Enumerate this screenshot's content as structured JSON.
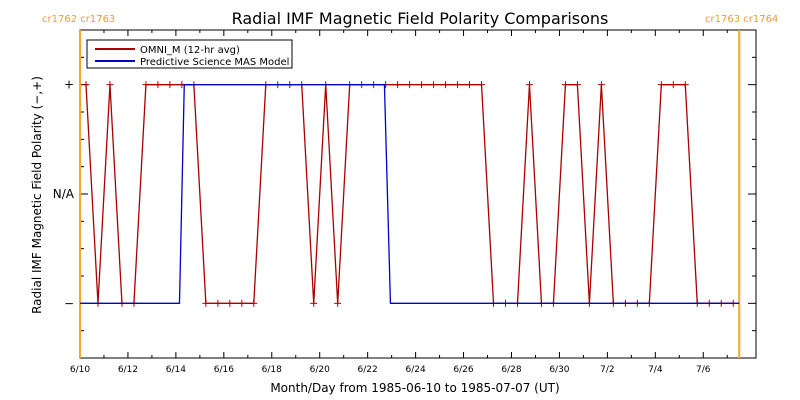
{
  "chart_data": {
    "type": "line",
    "title": "Radial IMF Magnetic Field Polarity Comparisons",
    "xlabel": "Month/Day from 1985-06-10 to 1985-07-07 (UT)",
    "ylabel": "Radial IMF Magnetic Field Polarity (−,+)",
    "x_start_date": "1985-06-10",
    "xlim_days": [
      0,
      28.2
    ],
    "ylim": [
      -1.5,
      1.5
    ],
    "x_ticks": [
      {
        "day": 0,
        "label": "6/10"
      },
      {
        "day": 2,
        "label": "6/12"
      },
      {
        "day": 4,
        "label": "6/14"
      },
      {
        "day": 6,
        "label": "6/16"
      },
      {
        "day": 8,
        "label": "6/18"
      },
      {
        "day": 10,
        "label": "6/20"
      },
      {
        "day": 12,
        "label": "6/22"
      },
      {
        "day": 14,
        "label": "6/24"
      },
      {
        "day": 16,
        "label": "6/26"
      },
      {
        "day": 18,
        "label": "6/28"
      },
      {
        "day": 20,
        "label": "6/30"
      },
      {
        "day": 22,
        "label": "7/2"
      },
      {
        "day": 24,
        "label": "7/4"
      },
      {
        "day": 26,
        "label": "7/6"
      }
    ],
    "y_ticks": [
      {
        "value": 1,
        "label": "+"
      },
      {
        "value": 0,
        "label": "N/A"
      },
      {
        "value": -1,
        "label": "−"
      }
    ],
    "carrington_markers": [
      {
        "day": 0,
        "label": "cr1762 cr1763",
        "color": "#f5a623",
        "side": "left"
      },
      {
        "day": 27.5,
        "label": "cr1763 cr1764",
        "color": "#f5a623",
        "side": "right"
      }
    ],
    "legend": {
      "placement": "top-left",
      "entries": [
        {
          "name": "OMNI_M (12-hr avg)",
          "color": "#aa0000"
        },
        {
          "name": "Predictive Science MAS Model",
          "color": "#0000cc"
        }
      ]
    },
    "series": [
      {
        "name": "OMNI_M (12-hr avg)",
        "color": "#aa0000",
        "marker": "plus",
        "x": [
          0.25,
          0.75,
          1.25,
          1.75,
          2.25,
          2.75,
          3.25,
          3.75,
          4.25,
          4.75,
          5.25,
          5.75,
          6.25,
          6.75,
          7.25,
          7.75,
          8.25,
          8.75,
          9.25,
          9.75,
          10.25,
          10.75,
          11.25,
          11.75,
          12.25,
          12.75,
          13.25,
          13.75,
          14.25,
          14.75,
          15.25,
          15.75,
          16.25,
          16.75,
          17.25,
          17.75,
          18.25,
          18.75,
          19.25,
          19.75,
          20.25,
          20.75,
          21.25,
          21.75,
          22.25,
          22.75,
          23.25,
          23.75,
          24.25,
          24.75,
          25.25,
          25.75,
          26.25,
          26.75,
          27.25
        ],
        "y": [
          1,
          -1,
          1,
          -1,
          -1,
          1,
          1,
          1,
          1,
          1,
          -1,
          -1,
          -1,
          -1,
          -1,
          1,
          1,
          1,
          1,
          -1,
          1,
          -1,
          1,
          1,
          1,
          1,
          1,
          1,
          1,
          1,
          1,
          1,
          1,
          1,
          -1,
          -1,
          -1,
          1,
          -1,
          -1,
          1,
          1,
          -1,
          1,
          -1,
          -1,
          -1,
          -1,
          1,
          1,
          1,
          -1,
          -1,
          -1,
          -1
        ]
      },
      {
        "name": "Predictive Science MAS Model",
        "color": "#0000cc",
        "points": [
          [
            0,
            -1
          ],
          [
            4.15,
            -1
          ],
          [
            4.35,
            1
          ],
          [
            12.7,
            1
          ],
          [
            12.95,
            -1
          ],
          [
            27.5,
            -1
          ]
        ]
      }
    ]
  }
}
